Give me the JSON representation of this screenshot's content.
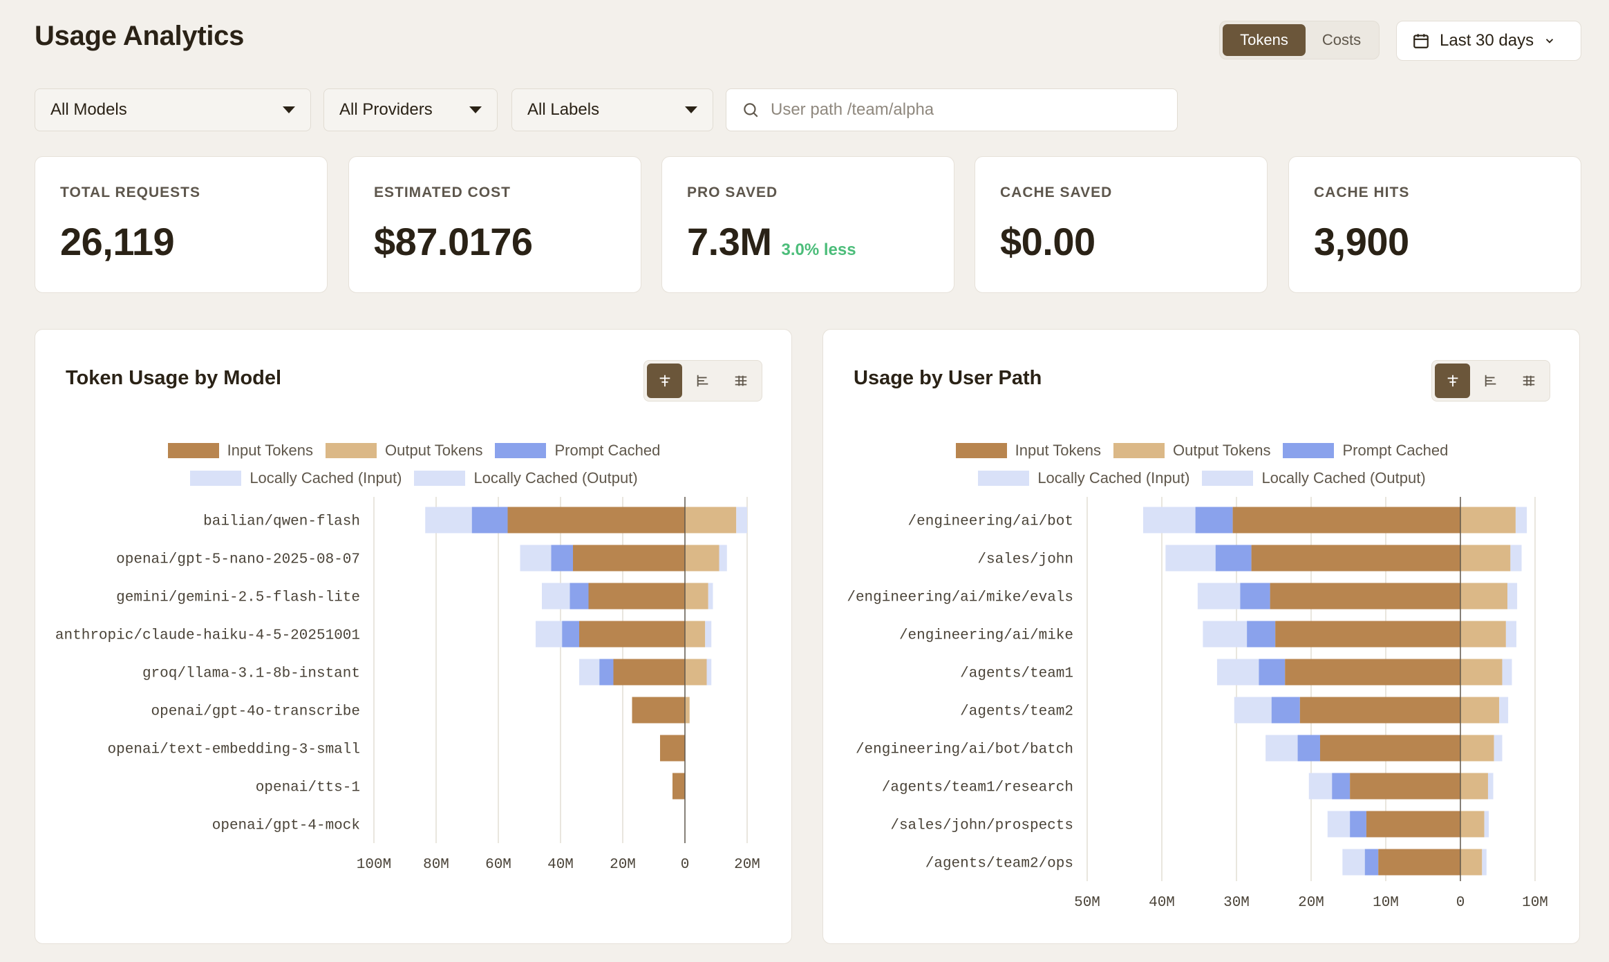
{
  "header": {
    "title": "Usage Analytics",
    "toggle": {
      "tokens": "Tokens",
      "costs": "Costs"
    },
    "date_range": "Last 30 days"
  },
  "filters": {
    "models": "All Models",
    "providers": "All Providers",
    "labels": "All Labels",
    "search_placeholder": "User path /team/alpha"
  },
  "stats": [
    {
      "label": "TOTAL REQUESTS",
      "value": "26,119"
    },
    {
      "label": "ESTIMATED COST",
      "value": "$87.0176"
    },
    {
      "label": "PRO SAVED",
      "value": "7.3M",
      "delta": "3.0% less"
    },
    {
      "label": "CACHE SAVED",
      "value": "$0.00"
    },
    {
      "label": "CACHE HITS",
      "value": "3,900"
    }
  ],
  "legend": {
    "input": "Input Tokens",
    "output": "Output Tokens",
    "prompt_cached": "Prompt Cached",
    "local_in": "Locally Cached (Input)",
    "local_out": "Locally Cached (Output)"
  },
  "colors": {
    "input": "#b8854f",
    "output": "#dbb887",
    "prompt_cached": "#8aa2ec",
    "local_in": "#d9e1f8",
    "local_out": "#d9e1f8",
    "accent": "#6b563a",
    "positive": "#4cbd7a"
  },
  "chart_data": [
    {
      "type": "bar",
      "title": "Token Usage by Model",
      "orientation": "horizontal-diverging",
      "categories": [
        "bailian/qwen-flash",
        "openai/gpt-5-nano-2025-08-07",
        "gemini/gemini-2.5-flash-lite",
        "anthropic/claude-haiku-4-5-20251001",
        "groq/llama-3.1-8b-instant",
        "openai/gpt-4o-transcribe",
        "openai/text-embedding-3-small",
        "openai/tts-1",
        "openai/gpt-4-mock"
      ],
      "series": [
        {
          "name": "Input Tokens",
          "values": [
            -57,
            -36,
            -31,
            -34,
            -23,
            -17,
            -8,
            -4,
            0
          ]
        },
        {
          "name": "Prompt Cached",
          "values": [
            -11.5,
            -7,
            -6,
            -5.5,
            -4.5,
            0,
            0,
            0,
            0
          ]
        },
        {
          "name": "Locally Cached (Input)",
          "values": [
            -15,
            -10,
            -9,
            -8.5,
            -6.5,
            0,
            0,
            0,
            0
          ]
        },
        {
          "name": "Output Tokens",
          "values": [
            16.5,
            11,
            7.5,
            6.5,
            7,
            1.5,
            0,
            0,
            0
          ]
        },
        {
          "name": "Locally Cached (Output)",
          "values": [
            3.5,
            2.5,
            1.5,
            2,
            1.5,
            0,
            0,
            0,
            0
          ]
        }
      ],
      "xlim": [
        -100,
        20
      ],
      "ticks": [
        "100M",
        "80M",
        "60M",
        "40M",
        "20M",
        "0",
        "20M"
      ],
      "tick_values": [
        -100,
        -80,
        -60,
        -40,
        -20,
        0,
        20
      ]
    },
    {
      "type": "bar",
      "title": "Usage by User Path",
      "orientation": "horizontal-diverging",
      "categories": [
        "/engineering/ai/bot",
        "/sales/john",
        "/engineering/ai/mike/evals",
        "/engineering/ai/mike",
        "/agents/team1",
        "/agents/team2",
        "/engineering/ai/bot/batch",
        "/agents/team1/research",
        "/sales/john/prospects",
        "/agents/team2/ops"
      ],
      "series": [
        {
          "name": "Input Tokens",
          "values": [
            -30.5,
            -28,
            -25.5,
            -24.8,
            -23.5,
            -21.5,
            -18.8,
            -14.8,
            -12.6,
            -11
          ]
        },
        {
          "name": "Prompt Cached",
          "values": [
            -5,
            -4.8,
            -4,
            -3.8,
            -3.5,
            -3.8,
            -3,
            -2.4,
            -2.2,
            -1.8
          ]
        },
        {
          "name": "Locally Cached (Input)",
          "values": [
            -7,
            -6.7,
            -5.7,
            -5.9,
            -5.6,
            -5,
            -4.3,
            -3.1,
            -3,
            -3
          ]
        },
        {
          "name": "Output Tokens",
          "values": [
            7.4,
            6.7,
            6.3,
            6.1,
            5.6,
            5.2,
            4.5,
            3.7,
            3.2,
            2.9
          ]
        },
        {
          "name": "Locally Cached (Output)",
          "values": [
            1.5,
            1.5,
            1.3,
            1.4,
            1.3,
            1.2,
            1.1,
            0.7,
            0.6,
            0.6
          ]
        }
      ],
      "xlim": [
        -50,
        10
      ],
      "ticks": [
        "50M",
        "40M",
        "30M",
        "20M",
        "10M",
        "0",
        "10M"
      ],
      "tick_values": [
        -50,
        -40,
        -30,
        -20,
        -10,
        0,
        10
      ]
    }
  ]
}
